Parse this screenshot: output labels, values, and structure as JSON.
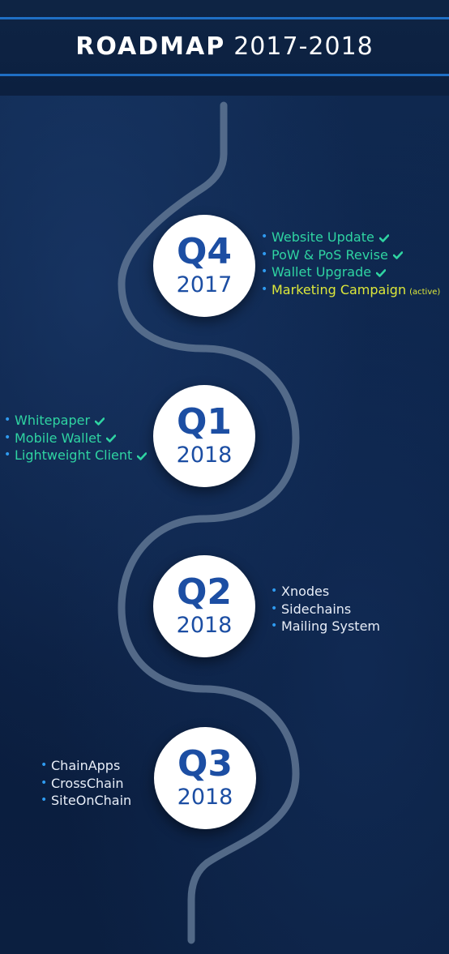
{
  "header": {
    "title_bold": "ROADMAP",
    "title_years": "2017-2018"
  },
  "colors": {
    "background": "#0b1f40",
    "accent_line": "#1f6fc4",
    "badge_text": "#1c4ea3",
    "done_text": "#2fd4a2",
    "active_text": "#dde83a",
    "pending_text": "#e8eef8",
    "bullet": "#2f9bf0"
  },
  "milestones": [
    {
      "quarter": "Q4",
      "year": "2017",
      "items": [
        {
          "label": "Website Update",
          "status": "done"
        },
        {
          "label": "PoW & PoS Revise",
          "status": "done"
        },
        {
          "label": "Wallet Upgrade",
          "status": "done"
        },
        {
          "label": "Marketing Campaign",
          "status": "active",
          "note": "(active)"
        }
      ]
    },
    {
      "quarter": "Q1",
      "year": "2018",
      "items": [
        {
          "label": "Whitepaper",
          "status": "done"
        },
        {
          "label": "Mobile Wallet",
          "status": "done"
        },
        {
          "label": "Lightweight Client",
          "status": "done"
        }
      ]
    },
    {
      "quarter": "Q2",
      "year": "2018",
      "items": [
        {
          "label": "Xnodes",
          "status": "pending"
        },
        {
          "label": "Sidechains",
          "status": "pending"
        },
        {
          "label": "Mailing System",
          "status": "pending"
        }
      ]
    },
    {
      "quarter": "Q3",
      "year": "2018",
      "items": [
        {
          "label": "ChainApps",
          "status": "pending"
        },
        {
          "label": "CrossChain",
          "status": "pending"
        },
        {
          "label": "SiteOnChain",
          "status": "pending"
        }
      ]
    }
  ],
  "icons": {
    "check": "check-icon",
    "bullet": "bullet-icon"
  }
}
